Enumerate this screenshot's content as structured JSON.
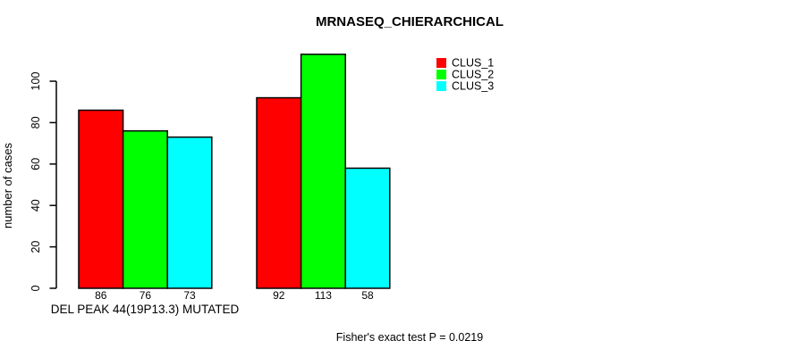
{
  "figure": {
    "background": "#ffffff",
    "text_color": "#000000"
  },
  "chart_data": {
    "type": "bar",
    "title": "MRNASEQ_CHIERARCHICAL",
    "ylabel": "number of cases",
    "xlabel": "DEL PEAK 44(19P13.3) MUTATED",
    "annotation": "Fisher's exact test P = 0.0219",
    "ylim": [
      0,
      100
    ],
    "yticks": [
      0,
      20,
      40,
      60,
      80,
      100
    ],
    "grid": false,
    "legend_position": "top-right",
    "bar_value_labels": true,
    "groups": [
      "DEL PEAK 44(19P13.3) MUTATED",
      ""
    ],
    "series": [
      {
        "name": "CLUS_1",
        "color": "#ff0000",
        "values": [
          86,
          92
        ]
      },
      {
        "name": "CLUS_2",
        "color": "#00ff00",
        "values": [
          76,
          113
        ]
      },
      {
        "name": "CLUS_3",
        "color": "#00ffff",
        "values": [
          73,
          58
        ]
      }
    ]
  }
}
